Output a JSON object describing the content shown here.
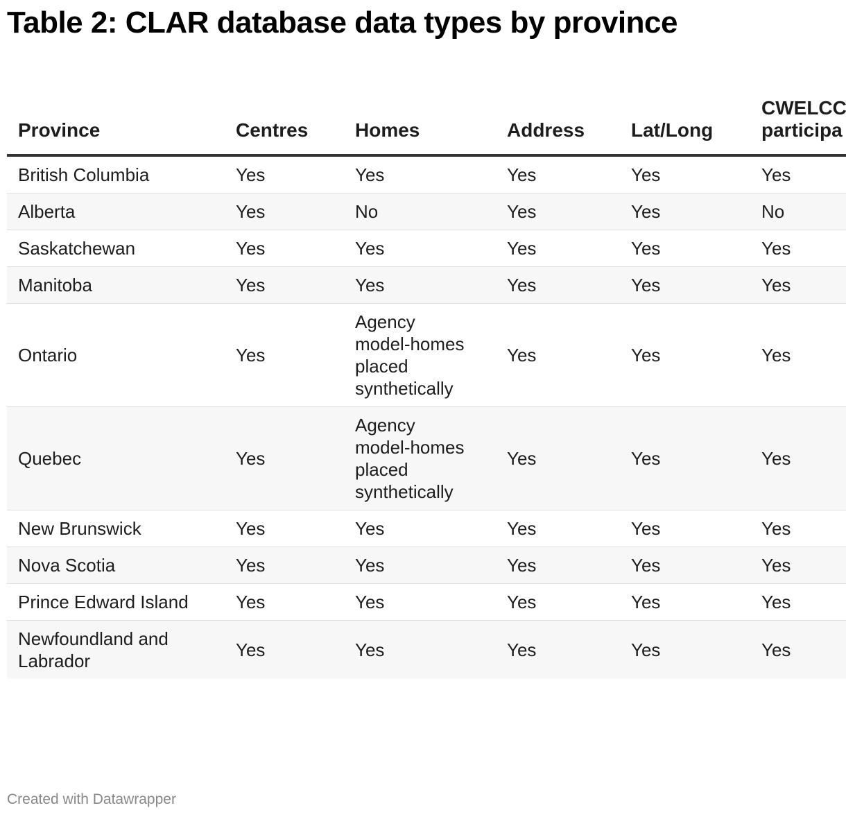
{
  "title": "Table 2: CLAR database data types by province",
  "footer": "Created with Datawrapper",
  "chart_data": {
    "type": "table",
    "title": "Table 2: CLAR database data types by province",
    "columns": [
      "Province",
      "Centres",
      "Homes",
      "Address",
      "Lat/Long",
      "CWELCC participa"
    ],
    "rows": [
      [
        "British Columbia",
        "Yes",
        "Yes",
        "Yes",
        "Yes",
        "Yes"
      ],
      [
        "Alberta",
        "Yes",
        "No",
        "Yes",
        "Yes",
        "No"
      ],
      [
        "Saskatchewan",
        "Yes",
        "Yes",
        "Yes",
        "Yes",
        "Yes"
      ],
      [
        "Manitoba",
        "Yes",
        "Yes",
        "Yes",
        "Yes",
        "Yes"
      ],
      [
        "Ontario",
        "Yes",
        "Agency model-homes placed synthetically",
        "Yes",
        "Yes",
        "Yes"
      ],
      [
        "Quebec",
        "Yes",
        "Agency model-homes placed synthetically",
        "Yes",
        "Yes",
        "Yes"
      ],
      [
        "New Brunswick",
        "Yes",
        "Yes",
        "Yes",
        "Yes",
        "Yes"
      ],
      [
        "Nova Scotia",
        "Yes",
        "Yes",
        "Yes",
        "Yes",
        "Yes"
      ],
      [
        "Prince Edward Island",
        "Yes",
        "Yes",
        "Yes",
        "Yes",
        "Yes"
      ],
      [
        "Newfoundland and Labrador",
        "Yes",
        "Yes",
        "Yes",
        "Yes",
        "Yes"
      ]
    ]
  }
}
